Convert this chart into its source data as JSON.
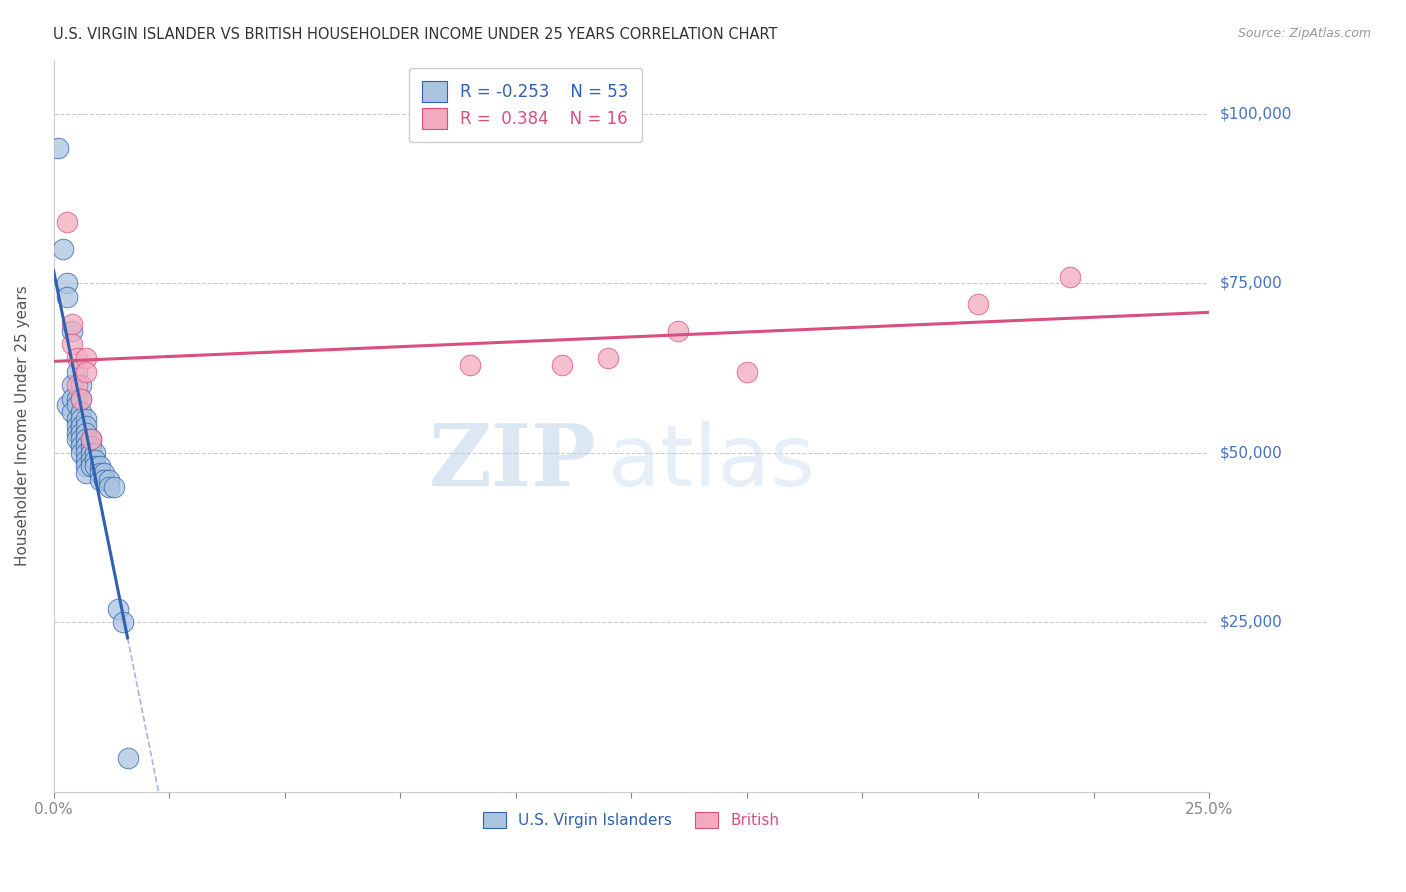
{
  "title": "U.S. VIRGIN ISLANDER VS BRITISH HOUSEHOLDER INCOME UNDER 25 YEARS CORRELATION CHART",
  "source": "Source: ZipAtlas.com",
  "ylabel": "Householder Income Under 25 years",
  "ytick_labels": [
    "$25,000",
    "$50,000",
    "$75,000",
    "$100,000"
  ],
  "ytick_values": [
    25000,
    50000,
    75000,
    100000
  ],
  "xlim": [
    0.0,
    0.25
  ],
  "ylim": [
    0,
    108000
  ],
  "legend_blue_r": "-0.253",
  "legend_blue_n": "53",
  "legend_pink_r": "0.384",
  "legend_pink_n": "16",
  "blue_color": "#aac4e0",
  "pink_color": "#f4aabe",
  "blue_line_color": "#3060b0",
  "pink_line_color": "#d85080",
  "watermark_zip": "ZIP",
  "watermark_atlas": "atlas",
  "blue_x": [
    0.001,
    0.002,
    0.003,
    0.003,
    0.003,
    0.004,
    0.004,
    0.004,
    0.004,
    0.005,
    0.005,
    0.005,
    0.005,
    0.005,
    0.005,
    0.005,
    0.006,
    0.006,
    0.006,
    0.006,
    0.006,
    0.006,
    0.006,
    0.006,
    0.006,
    0.007,
    0.007,
    0.007,
    0.007,
    0.007,
    0.007,
    0.007,
    0.007,
    0.007,
    0.008,
    0.008,
    0.008,
    0.008,
    0.008,
    0.009,
    0.009,
    0.009,
    0.01,
    0.01,
    0.01,
    0.011,
    0.011,
    0.012,
    0.012,
    0.013,
    0.014,
    0.015,
    0.016
  ],
  "blue_y": [
    95000,
    80000,
    75000,
    73000,
    57000,
    68000,
    60000,
    58000,
    56000,
    62000,
    58000,
    57000,
    55000,
    54000,
    53000,
    52000,
    60000,
    58000,
    56000,
    55000,
    54000,
    53000,
    52000,
    51000,
    50000,
    55000,
    54000,
    53000,
    52000,
    51000,
    50000,
    49000,
    48000,
    47000,
    52000,
    51000,
    50000,
    49000,
    48000,
    50000,
    49000,
    48000,
    48000,
    47000,
    46000,
    47000,
    46000,
    46000,
    45000,
    45000,
    27000,
    25000,
    5000
  ],
  "pink_x": [
    0.003,
    0.004,
    0.004,
    0.005,
    0.005,
    0.006,
    0.007,
    0.007,
    0.008,
    0.09,
    0.11,
    0.12,
    0.135,
    0.15,
    0.2,
    0.22
  ],
  "pink_y": [
    84000,
    69000,
    66000,
    64000,
    60000,
    58000,
    64000,
    62000,
    52000,
    63000,
    63000,
    64000,
    68000,
    62000,
    72000,
    76000
  ]
}
